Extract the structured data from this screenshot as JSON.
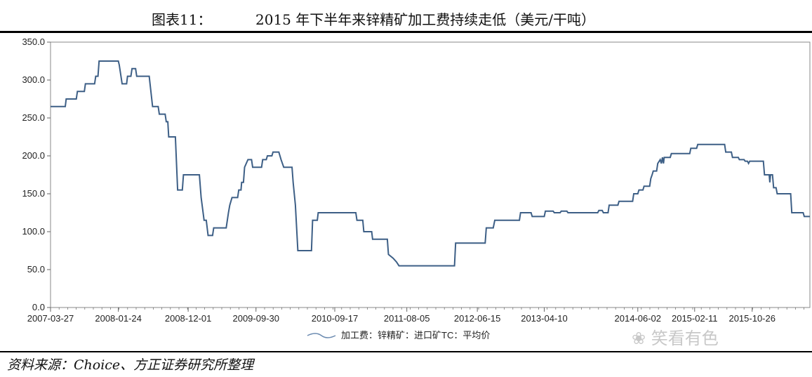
{
  "figure": {
    "label": "图表11：",
    "title": "2015 年下半年来锌精矿加工费持续走低（美元/干吨）",
    "source": "资料来源：Choice、方正证券研究所整理",
    "watermark": "笑看有色"
  },
  "colors": {
    "line": "#3d5f86",
    "axis": "#666666",
    "text": "#222222"
  },
  "chart_data": {
    "type": "line",
    "title": "",
    "xlabel": "",
    "ylabel": "",
    "ylim": [
      0,
      350
    ],
    "yticks": [
      "0.0",
      "50.0",
      "100.0",
      "150.0",
      "200.0",
      "250.0",
      "300.0",
      "350.0"
    ],
    "xticks": [
      "2007-03-27",
      "2008-01-24",
      "2008-12-01",
      "2009-09-30",
      "2010-09-17",
      "2011-08-05",
      "2012-06-15",
      "2013-04-10",
      "2014-06-02",
      "2015-02-11",
      "2015-10-26"
    ],
    "legend": {
      "position": "bottom-center",
      "entries": [
        "加工费：锌精矿：进口矿TC：平均价"
      ]
    },
    "series": [
      {
        "name": "加工费：锌精矿：进口矿TC：平均价",
        "points": [
          [
            "2007-03-27",
            265
          ],
          [
            "2007-06-01",
            265
          ],
          [
            "2007-06-05",
            275
          ],
          [
            "2007-07-20",
            275
          ],
          [
            "2007-07-25",
            285
          ],
          [
            "2007-08-25",
            285
          ],
          [
            "2007-08-30",
            295
          ],
          [
            "2007-10-10",
            295
          ],
          [
            "2007-10-15",
            305
          ],
          [
            "2007-10-25",
            305
          ],
          [
            "2007-10-30",
            325
          ],
          [
            "2008-01-24",
            325
          ],
          [
            "2008-01-28",
            320
          ],
          [
            "2008-02-10",
            295
          ],
          [
            "2008-03-01",
            295
          ],
          [
            "2008-03-05",
            305
          ],
          [
            "2008-03-20",
            305
          ],
          [
            "2008-03-25",
            315
          ],
          [
            "2008-04-10",
            315
          ],
          [
            "2008-04-15",
            305
          ],
          [
            "2008-06-10",
            305
          ],
          [
            "2008-06-25",
            265
          ],
          [
            "2008-07-20",
            265
          ],
          [
            "2008-07-25",
            255
          ],
          [
            "2008-08-20",
            255
          ],
          [
            "2008-08-25",
            245
          ],
          [
            "2008-09-01",
            245
          ],
          [
            "2008-09-05",
            225
          ],
          [
            "2008-10-05",
            225
          ],
          [
            "2008-10-15",
            155
          ],
          [
            "2008-11-05",
            155
          ],
          [
            "2008-11-10",
            175
          ],
          [
            "2009-01-20",
            175
          ],
          [
            "2009-01-28",
            145
          ],
          [
            "2009-02-10",
            115
          ],
          [
            "2009-02-20",
            115
          ],
          [
            "2009-02-28",
            95
          ],
          [
            "2009-03-20",
            95
          ],
          [
            "2009-03-25",
            105
          ],
          [
            "2009-05-20",
            105
          ],
          [
            "2009-05-25",
            115
          ],
          [
            "2009-05-30",
            125
          ],
          [
            "2009-06-05",
            135
          ],
          [
            "2009-06-15",
            145
          ],
          [
            "2009-07-10",
            145
          ],
          [
            "2009-07-15",
            155
          ],
          [
            "2009-07-25",
            155
          ],
          [
            "2009-07-28",
            165
          ],
          [
            "2009-08-05",
            165
          ],
          [
            "2009-08-10",
            185
          ],
          [
            "2009-08-25",
            195
          ],
          [
            "2009-09-10",
            195
          ],
          [
            "2009-09-15",
            185
          ],
          [
            "2009-10-25",
            185
          ],
          [
            "2009-10-30",
            195
          ],
          [
            "2009-11-15",
            195
          ],
          [
            "2009-11-20",
            200
          ],
          [
            "2009-12-10",
            200
          ],
          [
            "2009-12-15",
            205
          ],
          [
            "2010-01-10",
            205
          ],
          [
            "2010-01-20",
            195
          ],
          [
            "2010-02-01",
            185
          ],
          [
            "2010-03-10",
            185
          ],
          [
            "2010-03-15",
            165
          ],
          [
            "2010-03-25",
            135
          ],
          [
            "2010-04-05",
            75
          ],
          [
            "2010-06-05",
            75
          ],
          [
            "2010-06-10",
            115
          ],
          [
            "2010-07-01",
            115
          ],
          [
            "2010-07-05",
            125
          ],
          [
            "2010-12-20",
            125
          ],
          [
            "2010-12-25",
            115
          ],
          [
            "2011-01-20",
            115
          ],
          [
            "2011-01-25",
            100
          ],
          [
            "2011-03-01",
            100
          ],
          [
            "2011-03-05",
            90
          ],
          [
            "2011-05-10",
            90
          ],
          [
            "2011-05-15",
            70
          ],
          [
            "2011-06-05",
            65
          ],
          [
            "2011-06-20",
            60
          ],
          [
            "2011-07-01",
            55
          ],
          [
            "2012-03-05",
            55
          ],
          [
            "2012-03-10",
            85
          ],
          [
            "2012-07-20",
            85
          ],
          [
            "2012-07-25",
            105
          ],
          [
            "2012-08-25",
            105
          ],
          [
            "2012-09-01",
            115
          ],
          [
            "2012-12-20",
            115
          ],
          [
            "2012-12-25",
            125
          ],
          [
            "2013-02-10",
            125
          ],
          [
            "2013-02-15",
            120
          ],
          [
            "2013-04-10",
            120
          ],
          [
            "2013-04-15",
            127
          ],
          [
            "2013-05-20",
            127
          ],
          [
            "2013-05-25",
            125
          ],
          [
            "2013-06-20",
            125
          ],
          [
            "2013-06-25",
            127
          ],
          [
            "2013-07-20",
            127
          ],
          [
            "2013-07-25",
            125
          ],
          [
            "2013-12-05",
            125
          ],
          [
            "2013-12-10",
            128
          ],
          [
            "2013-12-25",
            128
          ],
          [
            "2013-12-30",
            125
          ],
          [
            "2014-01-20",
            125
          ],
          [
            "2014-01-25",
            135
          ],
          [
            "2014-03-05",
            135
          ],
          [
            "2014-03-10",
            140
          ],
          [
            "2014-05-10",
            140
          ],
          [
            "2014-05-15",
            150
          ],
          [
            "2014-06-02",
            150
          ],
          [
            "2014-06-07",
            155
          ],
          [
            "2014-06-25",
            155
          ],
          [
            "2014-06-30",
            160
          ],
          [
            "2014-07-25",
            160
          ],
          [
            "2014-07-30",
            170
          ],
          [
            "2014-08-05",
            175
          ],
          [
            "2014-08-10",
            180
          ],
          [
            "2014-08-25",
            180
          ],
          [
            "2014-08-30",
            190
          ],
          [
            "2014-09-10",
            195
          ],
          [
            "2014-09-15",
            190
          ],
          [
            "2014-09-20",
            198
          ],
          [
            "2014-09-25",
            190
          ],
          [
            "2014-09-28",
            198
          ],
          [
            "2014-10-25",
            198
          ],
          [
            "2014-10-30",
            203
          ],
          [
            "2015-01-20",
            203
          ],
          [
            "2015-01-25",
            210
          ],
          [
            "2015-02-20",
            210
          ],
          [
            "2015-02-25",
            215
          ],
          [
            "2015-06-25",
            215
          ],
          [
            "2015-06-30",
            205
          ],
          [
            "2015-07-25",
            205
          ],
          [
            "2015-07-30",
            198
          ],
          [
            "2015-08-25",
            198
          ],
          [
            "2015-08-30",
            195
          ],
          [
            "2015-09-20",
            195
          ],
          [
            "2015-09-25",
            193
          ],
          [
            "2015-10-05",
            193
          ],
          [
            "2015-10-10",
            190
          ],
          [
            "2015-10-15",
            193
          ],
          [
            "2015-12-15",
            193
          ],
          [
            "2015-12-20",
            175
          ],
          [
            "2016-01-10",
            175
          ],
          [
            "2016-01-13",
            165
          ],
          [
            "2016-01-16",
            175
          ],
          [
            "2016-01-25",
            175
          ],
          [
            "2016-01-30",
            158
          ],
          [
            "2016-02-10",
            158
          ],
          [
            "2016-02-15",
            150
          ],
          [
            "2016-04-15",
            150
          ],
          [
            "2016-04-20",
            125
          ],
          [
            "2016-06-10",
            125
          ],
          [
            "2016-06-15",
            120
          ],
          [
            "2016-07-10",
            120
          ]
        ]
      }
    ]
  }
}
